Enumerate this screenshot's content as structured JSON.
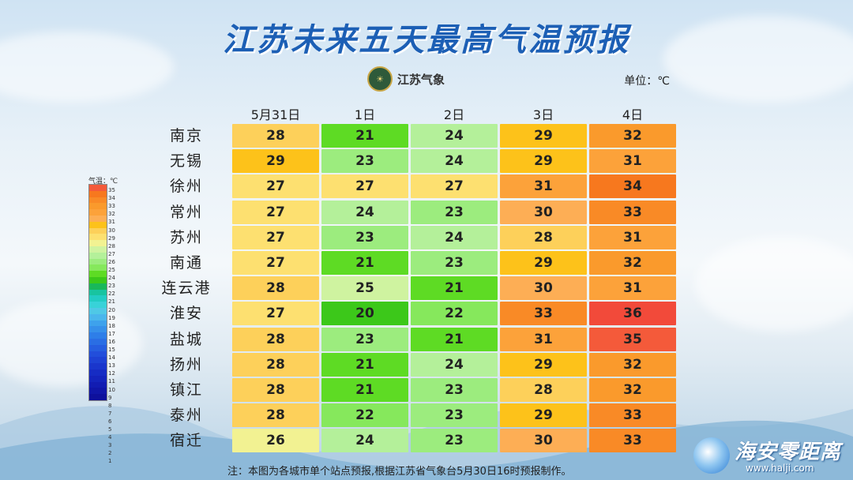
{
  "title": "江苏未来五天最高气温预报",
  "logo": {
    "text": "江苏气象",
    "icon": "meteorology-bureau-seal-icon"
  },
  "unit": "单位：℃",
  "days": [
    "5月31日",
    "1日",
    "2日",
    "3日",
    "4日"
  ],
  "cities": [
    {
      "name": "南京",
      "temps": [
        28,
        21,
        24,
        29,
        32
      ]
    },
    {
      "name": "无锡",
      "temps": [
        29,
        23,
        24,
        29,
        31
      ]
    },
    {
      "name": "徐州",
      "temps": [
        27,
        27,
        27,
        31,
        34
      ]
    },
    {
      "name": "常州",
      "temps": [
        27,
        24,
        23,
        30,
        33
      ]
    },
    {
      "name": "苏州",
      "temps": [
        27,
        23,
        24,
        28,
        31
      ]
    },
    {
      "name": "南通",
      "temps": [
        27,
        21,
        23,
        29,
        32
      ]
    },
    {
      "name": "连云港",
      "temps": [
        28,
        25,
        21,
        30,
        31
      ]
    },
    {
      "name": "淮安",
      "temps": [
        27,
        20,
        22,
        33,
        36
      ]
    },
    {
      "name": "盐城",
      "temps": [
        28,
        23,
        21,
        31,
        35
      ]
    },
    {
      "name": "扬州",
      "temps": [
        28,
        21,
        24,
        29,
        32
      ]
    },
    {
      "name": "镇江",
      "temps": [
        28,
        21,
        23,
        28,
        32
      ]
    },
    {
      "name": "泰州",
      "temps": [
        28,
        22,
        23,
        29,
        33
      ]
    },
    {
      "name": "宿迁",
      "temps": [
        26,
        24,
        23,
        30,
        33
      ]
    }
  ],
  "legend": {
    "title": "气温：℃",
    "levels": [
      35,
      34,
      33,
      32,
      31,
      30,
      29,
      28,
      27,
      26,
      25,
      24,
      23,
      22,
      21,
      20,
      19,
      18,
      17,
      16,
      15,
      14,
      13,
      12,
      11,
      10,
      9,
      8,
      7,
      6,
      5,
      4,
      3,
      2,
      1
    ]
  },
  "colors": {
    "36": "#f24a3a",
    "35": "#f45a3a",
    "34": "#f7781e",
    "33": "#f98a26",
    "32": "#fa9a2c",
    "31": "#fca23a",
    "30": "#fdae55",
    "29": "#fdc21a",
    "28": "#fdd05a",
    "27": "#fde070",
    "26": "#f2f292",
    "25": "#cff3a0",
    "24": "#b4f09a",
    "23": "#9cec7e",
    "22": "#86e85c",
    "21": "#5edb24",
    "20": "#3cc81a",
    "19": "#19b85a",
    "18": "#18c4a0",
    "17": "#22ccc4",
    "16": "#38d2d8",
    "15": "#4fc8e6",
    "14": "#4ab6ec",
    "13": "#3ea2ec",
    "12": "#3690ea",
    "11": "#2e7ee8",
    "10": "#2a6ee4",
    "9": "#265ee0",
    "8": "#224edb",
    "7": "#1e42d4",
    "6": "#1a36cc",
    "5": "#162cc4",
    "4": "#1424bc",
    "3": "#121cb2",
    "2": "#1016a8",
    "1": "#0e109c"
  },
  "note": "注：本图为各城市单个站点预报,根据江苏省气象台5月30日16时预报制作。",
  "brand": {
    "name": "海安零距离",
    "url": "www.halji.com"
  }
}
